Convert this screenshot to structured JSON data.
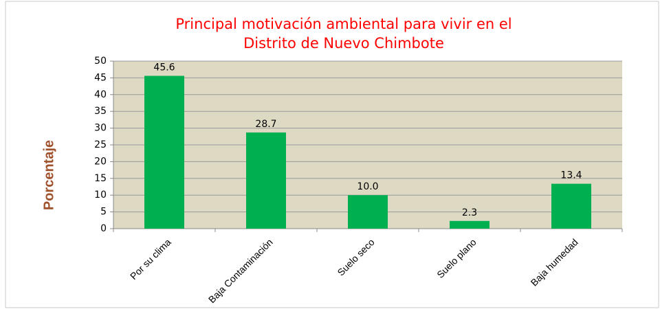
{
  "chart_data": {
    "type": "bar",
    "title": [
      "Principal motivación ambiental  para vivir  en el",
      "Distrito de Nuevo Chimbote"
    ],
    "ylabel": "Porcentaje",
    "categories": [
      "Por su clima",
      "Baja Contaminación",
      "Suelo seco",
      "Suelo plano",
      "Baja humedad"
    ],
    "values": [
      45.6,
      28.7,
      10,
      2.3,
      13.4
    ],
    "value_labels": [
      "45.6",
      "28.7",
      "10.0",
      "2.3",
      "13.4"
    ],
    "color": "#00b050",
    "ylim": [
      0,
      50
    ],
    "yticks": [
      0,
      5,
      10,
      15,
      20,
      25,
      30,
      35,
      40,
      45,
      50
    ],
    "grid": true
  }
}
